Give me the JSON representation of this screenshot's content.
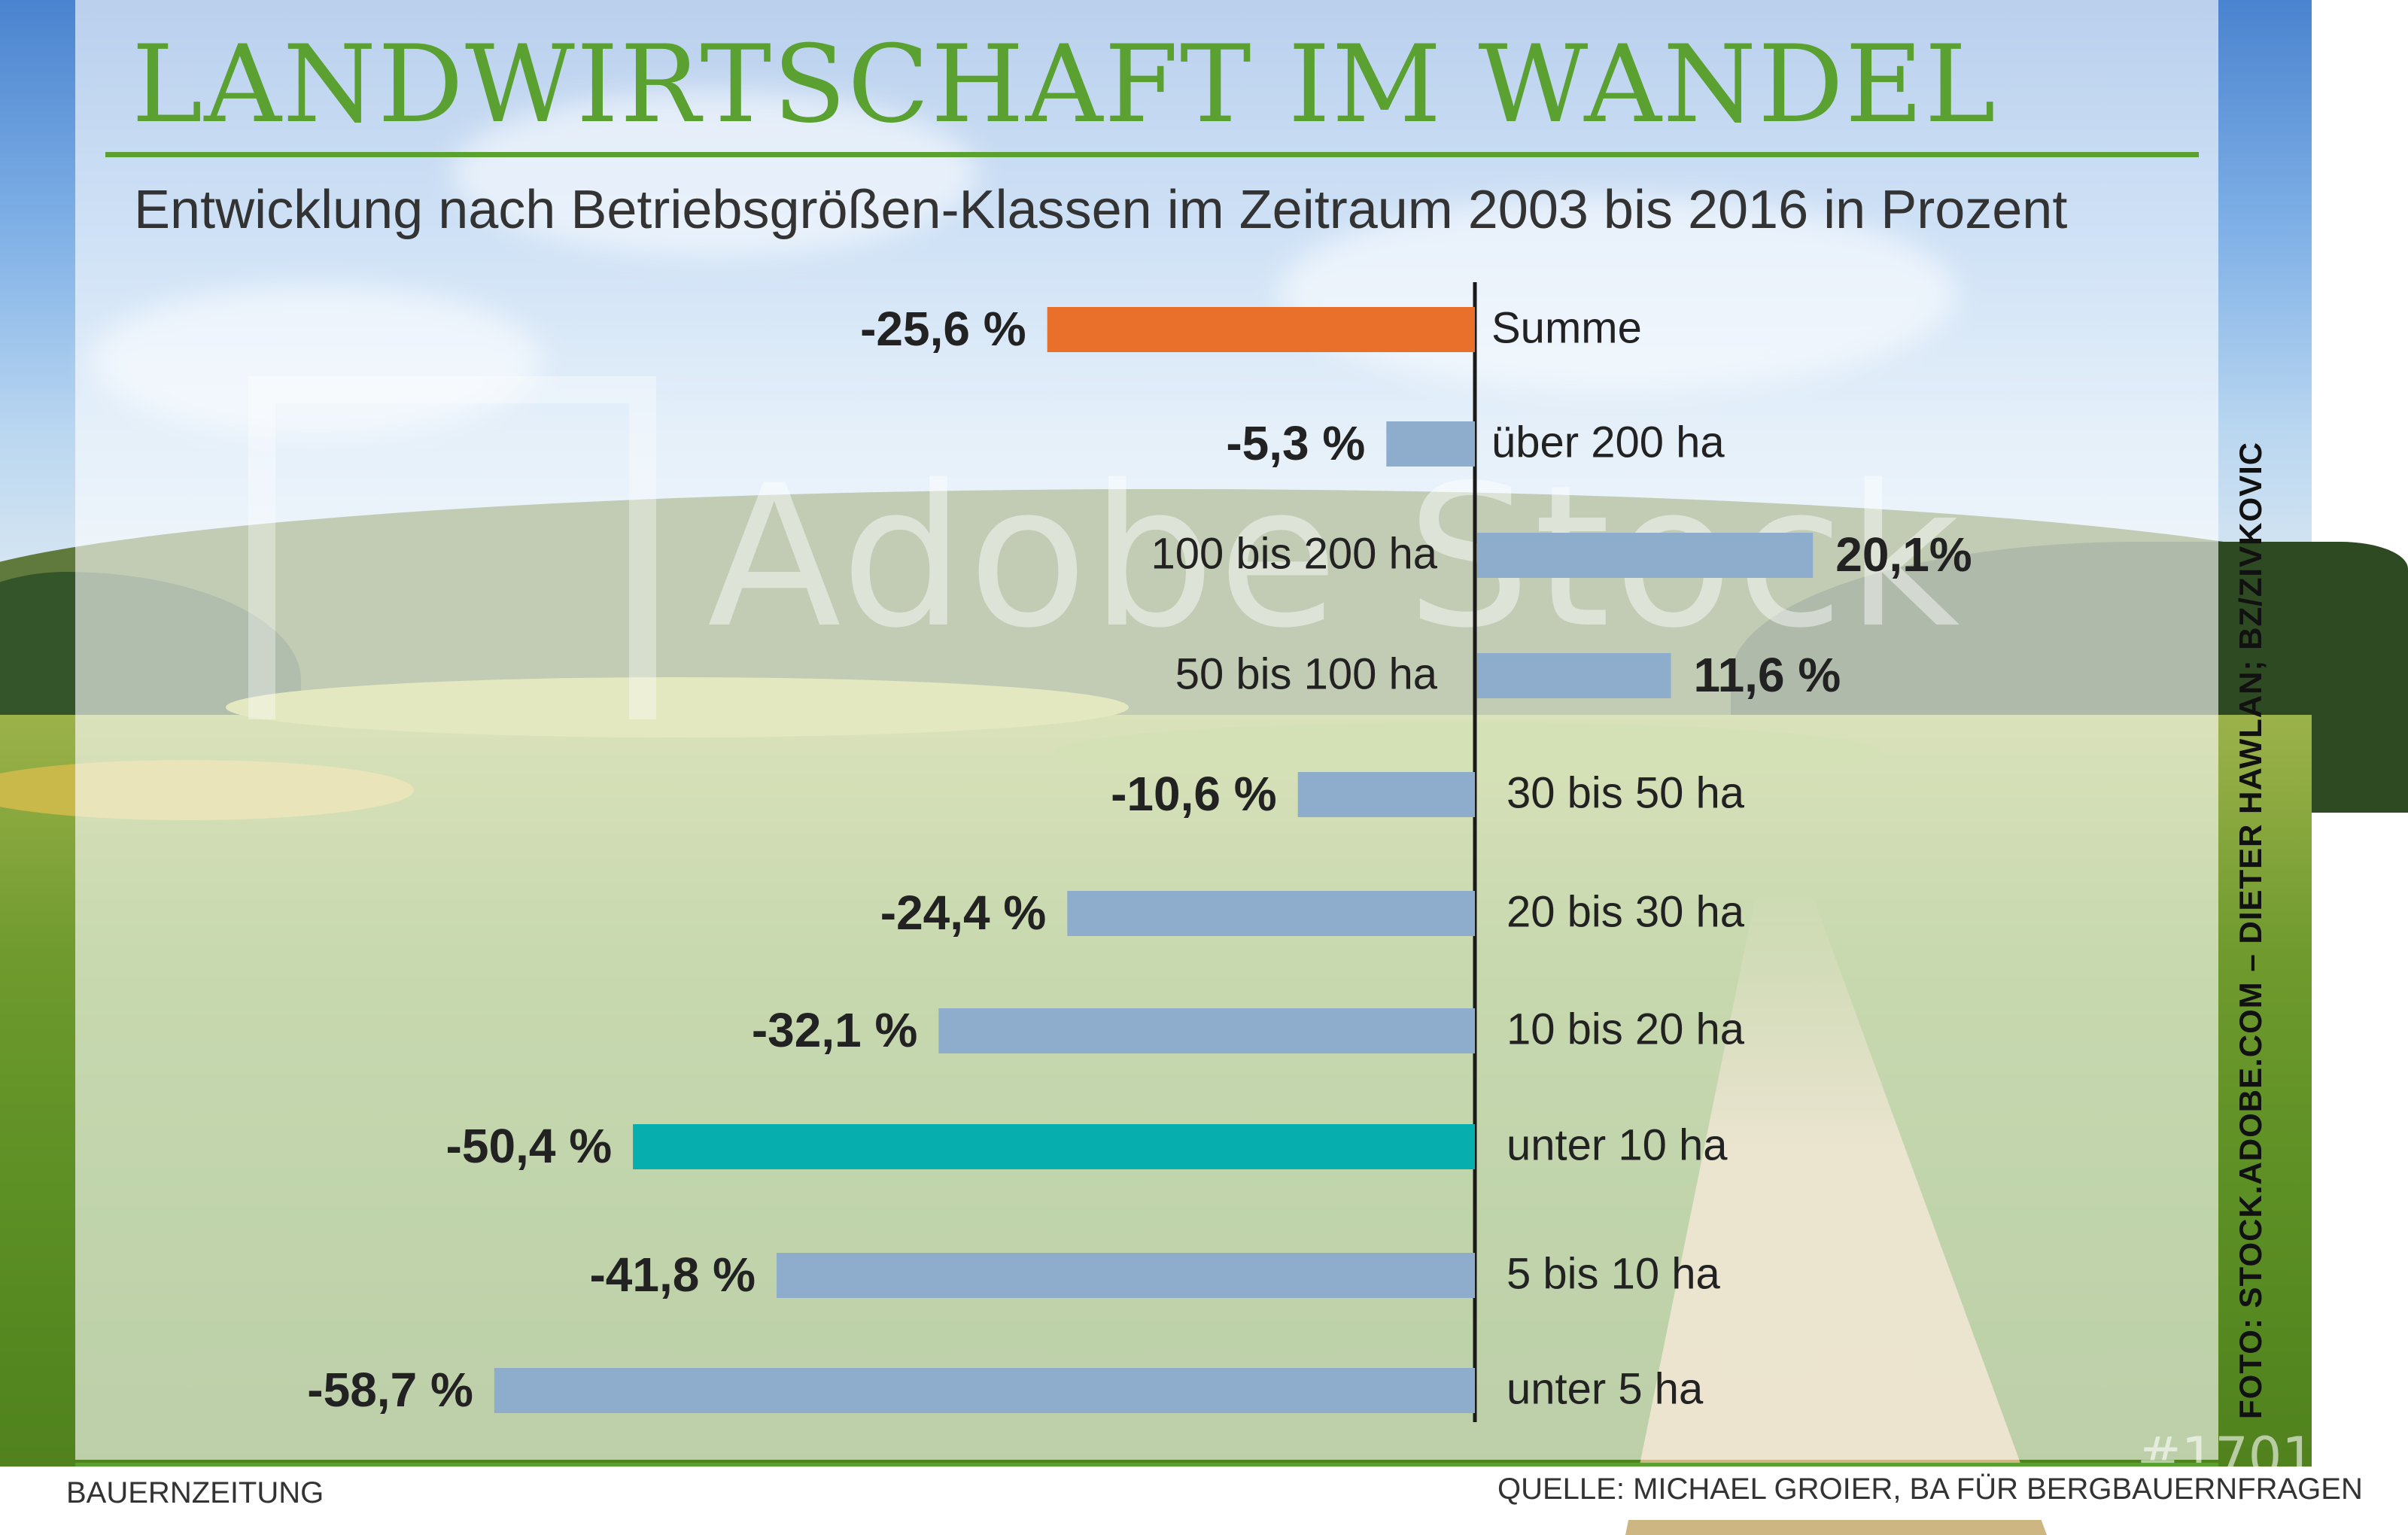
{
  "title": "LANDWIRTSCHAFT IM WANDEL",
  "subtitle": "Entwicklung nach Betriebsgrößen-Klassen im Zeitraum 2003 bis 2016 in Prozent",
  "footer": {
    "left": "BAUERNZEITUNG",
    "right": "QUELLE: MICHAEL GROIER, BA FÜR BERGBAUERNFRAGEN"
  },
  "credit": "FOTO: STOCK.ADOBE.COM – DIETER HAWLAN; BZ/ZIVKOVIC",
  "watermark": {
    "text": "Adobe Stock",
    "number": "#1701"
  },
  "colors": {
    "accent_green": "#5aa132",
    "bar_default": "#8eadcc",
    "bar_total": "#e8702b",
    "bar_highlight": "#06afae",
    "axis": "#1a1a1a"
  },
  "chart_data": {
    "type": "bar",
    "orientation": "horizontal",
    "title": "LANDWIRTSCHAFT IM WANDEL",
    "subtitle": "Entwicklung nach Betriebsgrößen-Klassen im Zeitraum 2003 bis 2016 in Prozent",
    "xlabel": "",
    "ylabel": "",
    "xlim": [
      -60,
      22
    ],
    "grid": false,
    "legend": "none",
    "categories": [
      "Summe",
      "über 200 ha",
      "100 bis 200 ha",
      "50 bis 100 ha",
      "30 bis 50 ha",
      "20 bis 30 ha",
      "10 bis 20 ha",
      "unter 10 ha",
      "5 bis 10 ha",
      "unter 5 ha"
    ],
    "values": [
      -25.6,
      -5.3,
      20.1,
      11.6,
      -10.6,
      -24.4,
      -32.1,
      -50.4,
      -41.8,
      -58.7
    ],
    "value_labels": [
      "-25,6 %",
      "-5,3 %",
      "20,1%",
      "11,6 %",
      "-10,6 %",
      "-24,4 %",
      "-32,1 %",
      "-50,4 %",
      "-41,8 %",
      "-58,7 %"
    ],
    "bar_colors": [
      "#e8702b",
      "#8eadcc",
      "#8eadcc",
      "#8eadcc",
      "#8eadcc",
      "#8eadcc",
      "#8eadcc",
      "#06afae",
      "#8eadcc",
      "#8eadcc"
    ]
  }
}
